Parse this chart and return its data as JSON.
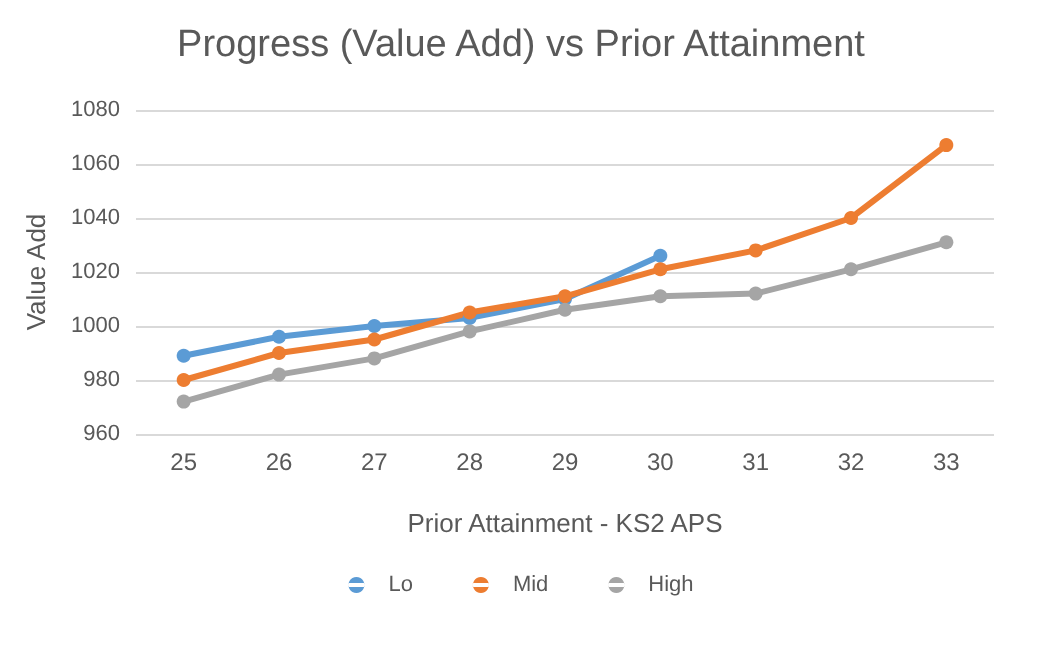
{
  "chart_data": {
    "type": "line",
    "title": "Progress (Value Add) vs Prior Attainment",
    "xlabel": "Prior Attainment - KS2 APS",
    "ylabel": "Value Add",
    "categories": [
      "25",
      "26",
      "27",
      "28",
      "29",
      "30",
      "31",
      "32",
      "33"
    ],
    "series": [
      {
        "name": "Lo",
        "color": "#5b9bd5",
        "values": [
          989,
          996,
          1000,
          1003,
          1010,
          1026,
          null,
          null,
          null
        ]
      },
      {
        "name": "Mid",
        "color": "#ed7d31",
        "values": [
          980,
          990,
          995,
          1005,
          1011,
          1021,
          1028,
          1040,
          1067
        ]
      },
      {
        "name": "High",
        "color": "#a5a5a5",
        "values": [
          972,
          982,
          988,
          998,
          1006,
          1011,
          1012,
          1021,
          1031
        ]
      }
    ],
    "ylim": [
      960,
      1080
    ],
    "yticks": [
      960,
      980,
      1000,
      1020,
      1040,
      1060,
      1080
    ],
    "grid": "y",
    "legend": "bottom",
    "marker": "circle",
    "line_style": "solid"
  }
}
